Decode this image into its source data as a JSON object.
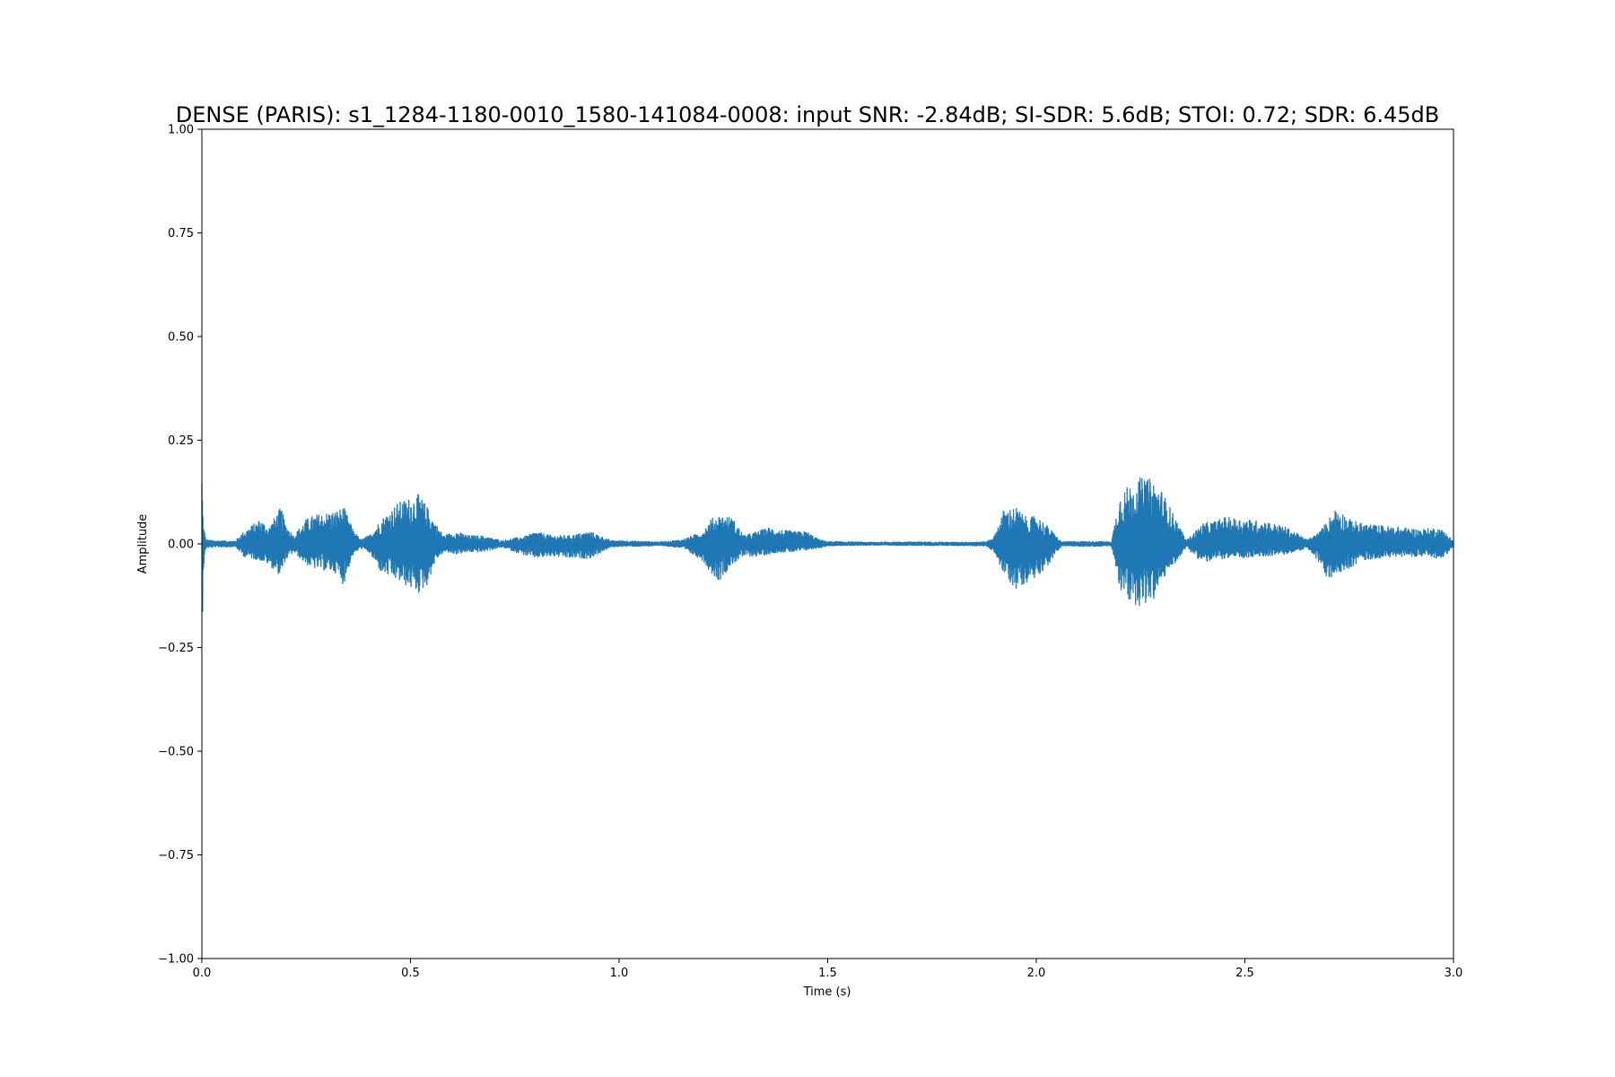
{
  "chart_data": {
    "type": "line",
    "title": "DENSE (PARIS): s1_1284-1180-0010_1580-141084-0008: input SNR: -2.84dB; SI-SDR: 5.6dB; STOI: 0.72; SDR: 6.45dB",
    "xlabel": "Time (s)",
    "ylabel": "Amplitude",
    "xlim": [
      0.0,
      3.0
    ],
    "ylim": [
      -1.0,
      1.0
    ],
    "xticks": [
      0.0,
      0.5,
      1.0,
      1.5,
      2.0,
      2.5,
      3.0
    ],
    "xtick_labels": [
      "0.0",
      "0.5",
      "1.0",
      "1.5",
      "2.0",
      "2.5",
      "3.0"
    ],
    "yticks": [
      1.0,
      0.75,
      0.5,
      0.25,
      0.0,
      -0.25,
      -0.5,
      -0.75,
      -1.0
    ],
    "ytick_labels": [
      "1.00",
      "0.75",
      "0.50",
      "0.25",
      "0.00",
      "−0.25",
      "−0.50",
      "−0.75",
      "−1.00"
    ],
    "grid": false,
    "series": [
      {
        "color": "#1f77b4",
        "envelope": {
          "t": [
            0.0,
            0.003,
            0.01,
            0.03,
            0.08,
            0.1,
            0.14,
            0.16,
            0.19,
            0.2,
            0.22,
            0.25,
            0.27,
            0.32,
            0.34,
            0.36,
            0.38,
            0.4,
            0.43,
            0.47,
            0.52,
            0.54,
            0.56,
            0.58,
            0.61,
            0.64,
            0.67,
            0.72,
            0.78,
            0.8,
            0.84,
            0.88,
            0.93,
            0.98,
            1.01,
            1.05,
            1.1,
            1.15,
            1.2,
            1.22,
            1.24,
            1.27,
            1.3,
            1.33,
            1.36,
            1.38,
            1.42,
            1.45,
            1.48,
            1.5,
            1.6,
            1.7,
            1.8,
            1.88,
            1.9,
            1.92,
            1.95,
            1.98,
            2.0,
            2.03,
            2.06,
            2.1,
            2.15,
            2.18,
            2.2,
            2.22,
            2.25,
            2.28,
            2.3,
            2.33,
            2.36,
            2.38,
            2.4,
            2.43,
            2.45,
            2.5,
            2.55,
            2.6,
            2.65,
            2.68,
            2.7,
            2.72,
            2.75,
            2.78,
            2.82,
            2.88,
            2.92,
            2.96,
            2.98,
            3.0
          ],
          "upper": [
            0.19,
            0.05,
            0.01,
            0.008,
            0.007,
            0.03,
            0.06,
            0.04,
            0.09,
            0.05,
            0.02,
            0.06,
            0.07,
            0.08,
            0.09,
            0.04,
            0.01,
            0.02,
            0.06,
            0.1,
            0.12,
            0.09,
            0.05,
            0.02,
            0.03,
            0.02,
            0.02,
            0.008,
            0.02,
            0.03,
            0.02,
            0.02,
            0.03,
            0.008,
            0.008,
            0.006,
            0.005,
            0.01,
            0.03,
            0.06,
            0.07,
            0.065,
            0.02,
            0.03,
            0.04,
            0.035,
            0.03,
            0.03,
            0.01,
            0.006,
            0.004,
            0.005,
            0.004,
            0.005,
            0.02,
            0.08,
            0.09,
            0.06,
            0.07,
            0.04,
            0.005,
            0.006,
            0.006,
            0.005,
            0.12,
            0.14,
            0.16,
            0.155,
            0.13,
            0.07,
            0.008,
            0.03,
            0.05,
            0.055,
            0.065,
            0.06,
            0.055,
            0.04,
            0.01,
            0.03,
            0.06,
            0.09,
            0.06,
            0.05,
            0.045,
            0.04,
            0.035,
            0.04,
            0.03,
            0.005
          ],
          "lower": [
            -0.29,
            -0.07,
            -0.01,
            -0.008,
            -0.007,
            -0.03,
            -0.04,
            -0.05,
            -0.08,
            -0.04,
            -0.02,
            -0.05,
            -0.06,
            -0.07,
            -0.1,
            -0.03,
            -0.01,
            -0.02,
            -0.07,
            -0.09,
            -0.12,
            -0.1,
            -0.04,
            -0.02,
            -0.025,
            -0.02,
            -0.02,
            -0.008,
            -0.03,
            -0.035,
            -0.03,
            -0.035,
            -0.035,
            -0.008,
            -0.006,
            -0.006,
            -0.004,
            -0.01,
            -0.04,
            -0.07,
            -0.09,
            -0.05,
            -0.03,
            -0.03,
            -0.025,
            -0.02,
            -0.02,
            -0.015,
            -0.01,
            -0.005,
            -0.003,
            -0.004,
            -0.004,
            -0.005,
            -0.02,
            -0.07,
            -0.11,
            -0.09,
            -0.08,
            -0.05,
            -0.005,
            -0.006,
            -0.006,
            -0.005,
            -0.11,
            -0.14,
            -0.15,
            -0.14,
            -0.09,
            -0.05,
            -0.008,
            -0.03,
            -0.045,
            -0.04,
            -0.035,
            -0.035,
            -0.03,
            -0.025,
            -0.01,
            -0.05,
            -0.09,
            -0.07,
            -0.06,
            -0.04,
            -0.035,
            -0.03,
            -0.03,
            -0.035,
            -0.03,
            -0.005
          ]
        }
      }
    ]
  }
}
